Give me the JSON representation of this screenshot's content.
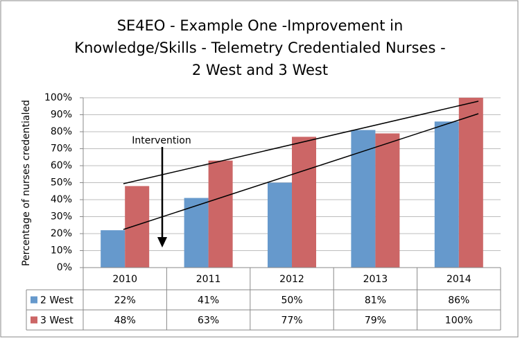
{
  "chart_data": {
    "type": "bar",
    "title": [
      "SE4EO - Example One -Improvement in",
      "Knowledge/Skills - Telemetry Credentialed Nurses -",
      "2 West and 3 West"
    ],
    "y_label": "Percentage of nurses credentialed",
    "annotation": "Intervention",
    "categories": [
      "2010",
      "2011",
      "2012",
      "2013",
      "2014"
    ],
    "series": [
      {
        "name": "2 West",
        "color": "#6699cc",
        "values": [
          22,
          41,
          50,
          81,
          86
        ],
        "value_labels": [
          "22%",
          "41%",
          "50%",
          "81%",
          "86%"
        ]
      },
      {
        "name": "3 West",
        "color": "#cc6666",
        "values": [
          48,
          63,
          77,
          79,
          100
        ],
        "value_labels": [
          "48%",
          "63%",
          "77%",
          "79%",
          "100%"
        ]
      }
    ],
    "ylim": [
      0,
      100
    ],
    "yticks": [
      {
        "value": 0,
        "label": "0%"
      },
      {
        "value": 10,
        "label": "10%"
      },
      {
        "value": 20,
        "label": "20%"
      },
      {
        "value": 30,
        "label": "30%"
      },
      {
        "value": 40,
        "label": "40%"
      },
      {
        "value": 50,
        "label": "50%"
      },
      {
        "value": 60,
        "label": "60%"
      },
      {
        "value": 70,
        "label": "70%"
      },
      {
        "value": 80,
        "label": "80%"
      },
      {
        "value": 90,
        "label": "90%"
      },
      {
        "value": 100,
        "label": "100%"
      }
    ],
    "grid": true,
    "legend": "table"
  }
}
